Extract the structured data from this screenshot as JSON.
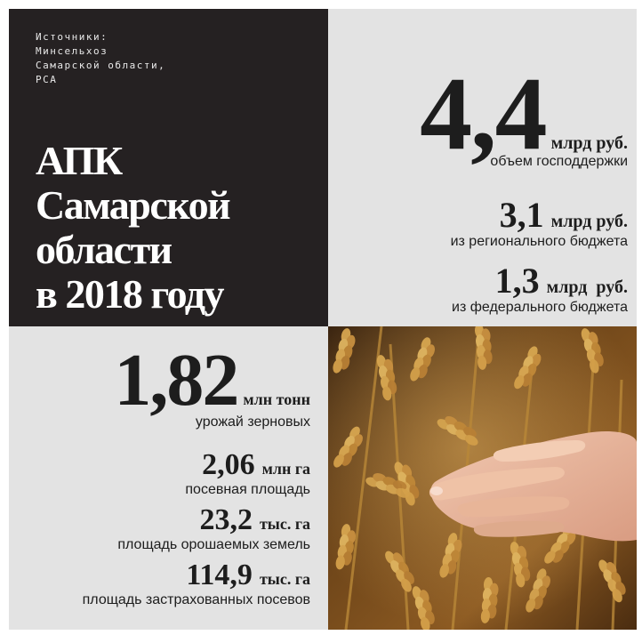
{
  "sources": {
    "lines": [
      "Источники:",
      "Минсельхоз",
      "Самарской области,",
      "РСА"
    ]
  },
  "title": {
    "lines": [
      "АПК",
      "Самарской",
      "области",
      "в  2018 году"
    ]
  },
  "budget": {
    "total": {
      "value": "4,4",
      "unit": "млрд руб.",
      "label": "объем господдержки"
    },
    "regional": {
      "value": "3,1",
      "unit": "млрд руб.",
      "label": "из регионального бюджета"
    },
    "federal": {
      "value": "1,3",
      "unit": "млрд  руб.",
      "label": "из федерального бюджета"
    }
  },
  "agri": {
    "harvest": {
      "value": "1,82",
      "unit": "млн тонн",
      "label": "урожай зерновых"
    },
    "sown_area": {
      "value": "2,06",
      "unit": "млн га",
      "label": "посевная площадь"
    },
    "irrigated": {
      "value": "23,2",
      "unit": "тыс. га",
      "label": "площадь орошаемых земель"
    },
    "insured": {
      "value": "114,9",
      "unit": "тыс. га",
      "label": "площадь застрахованных посевов"
    }
  },
  "colors": {
    "dark_panel": "#252122",
    "light_panel": "#e3e3e3",
    "text_dark": "#1d1d1d",
    "wheat": "#c8953f"
  },
  "photo": {
    "subject": "hand touching wheat ears"
  }
}
